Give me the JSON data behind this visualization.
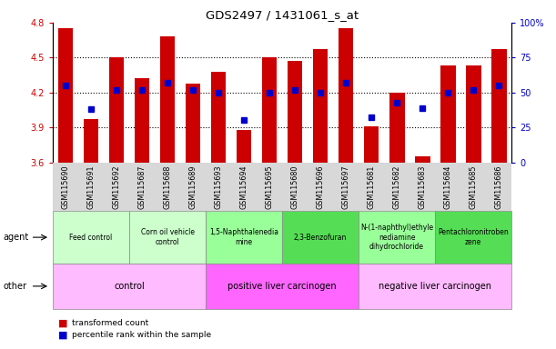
{
  "title": "GDS2497 / 1431061_s_at",
  "samples": [
    "GSM115690",
    "GSM115691",
    "GSM115692",
    "GSM115687",
    "GSM115688",
    "GSM115689",
    "GSM115693",
    "GSM115694",
    "GSM115695",
    "GSM115680",
    "GSM115696",
    "GSM115697",
    "GSM115681",
    "GSM115682",
    "GSM115683",
    "GSM115684",
    "GSM115685",
    "GSM115686"
  ],
  "bar_values": [
    4.75,
    3.97,
    4.5,
    4.32,
    4.68,
    4.28,
    4.38,
    3.88,
    4.5,
    4.47,
    4.57,
    4.75,
    3.91,
    4.2,
    3.65,
    4.43,
    4.43,
    4.57
  ],
  "dot_percentiles": [
    55,
    38,
    52,
    52,
    57,
    52,
    50,
    30,
    50,
    52,
    50,
    57,
    32,
    43,
    39,
    50,
    52,
    55
  ],
  "ylim_left": [
    3.6,
    4.8
  ],
  "ylim_right": [
    0,
    100
  ],
  "yticks_left": [
    3.6,
    3.9,
    4.2,
    4.5,
    4.8
  ],
  "yticks_right": [
    0,
    25,
    50,
    75,
    100
  ],
  "bar_color": "#cc0000",
  "dot_color": "#0000cc",
  "agent_groups": [
    {
      "label": "Feed control",
      "start": 0,
      "end": 3,
      "color": "#ccffcc"
    },
    {
      "label": "Corn oil vehicle\ncontrol",
      "start": 3,
      "end": 6,
      "color": "#ccffcc"
    },
    {
      "label": "1,5-Naphthalenedia\nmine",
      "start": 6,
      "end": 9,
      "color": "#99ff99"
    },
    {
      "label": "2,3-Benzofuran",
      "start": 9,
      "end": 12,
      "color": "#55dd55"
    },
    {
      "label": "N-(1-naphthyl)ethyle\nnediamine\ndihydrochloride",
      "start": 12,
      "end": 15,
      "color": "#99ff99"
    },
    {
      "label": "Pentachloronitroben\nzene",
      "start": 15,
      "end": 18,
      "color": "#55dd55"
    }
  ],
  "other_groups": [
    {
      "label": "control",
      "start": 0,
      "end": 6,
      "color": "#ffbbff"
    },
    {
      "label": "positive liver carcinogen",
      "start": 6,
      "end": 12,
      "color": "#ff66ff"
    },
    {
      "label": "negative liver carcinogen",
      "start": 12,
      "end": 18,
      "color": "#ffbbff"
    }
  ],
  "agent_row_label": "agent",
  "other_row_label": "other",
  "legend_bar_label": "transformed count",
  "legend_dot_label": "percentile rank within the sample",
  "tick_label_color_left": "#cc0000",
  "tick_label_color_right": "#0000cc",
  "gridline_y": [
    3.9,
    4.2,
    4.5
  ],
  "xtick_bg_color": "#d8d8d8"
}
